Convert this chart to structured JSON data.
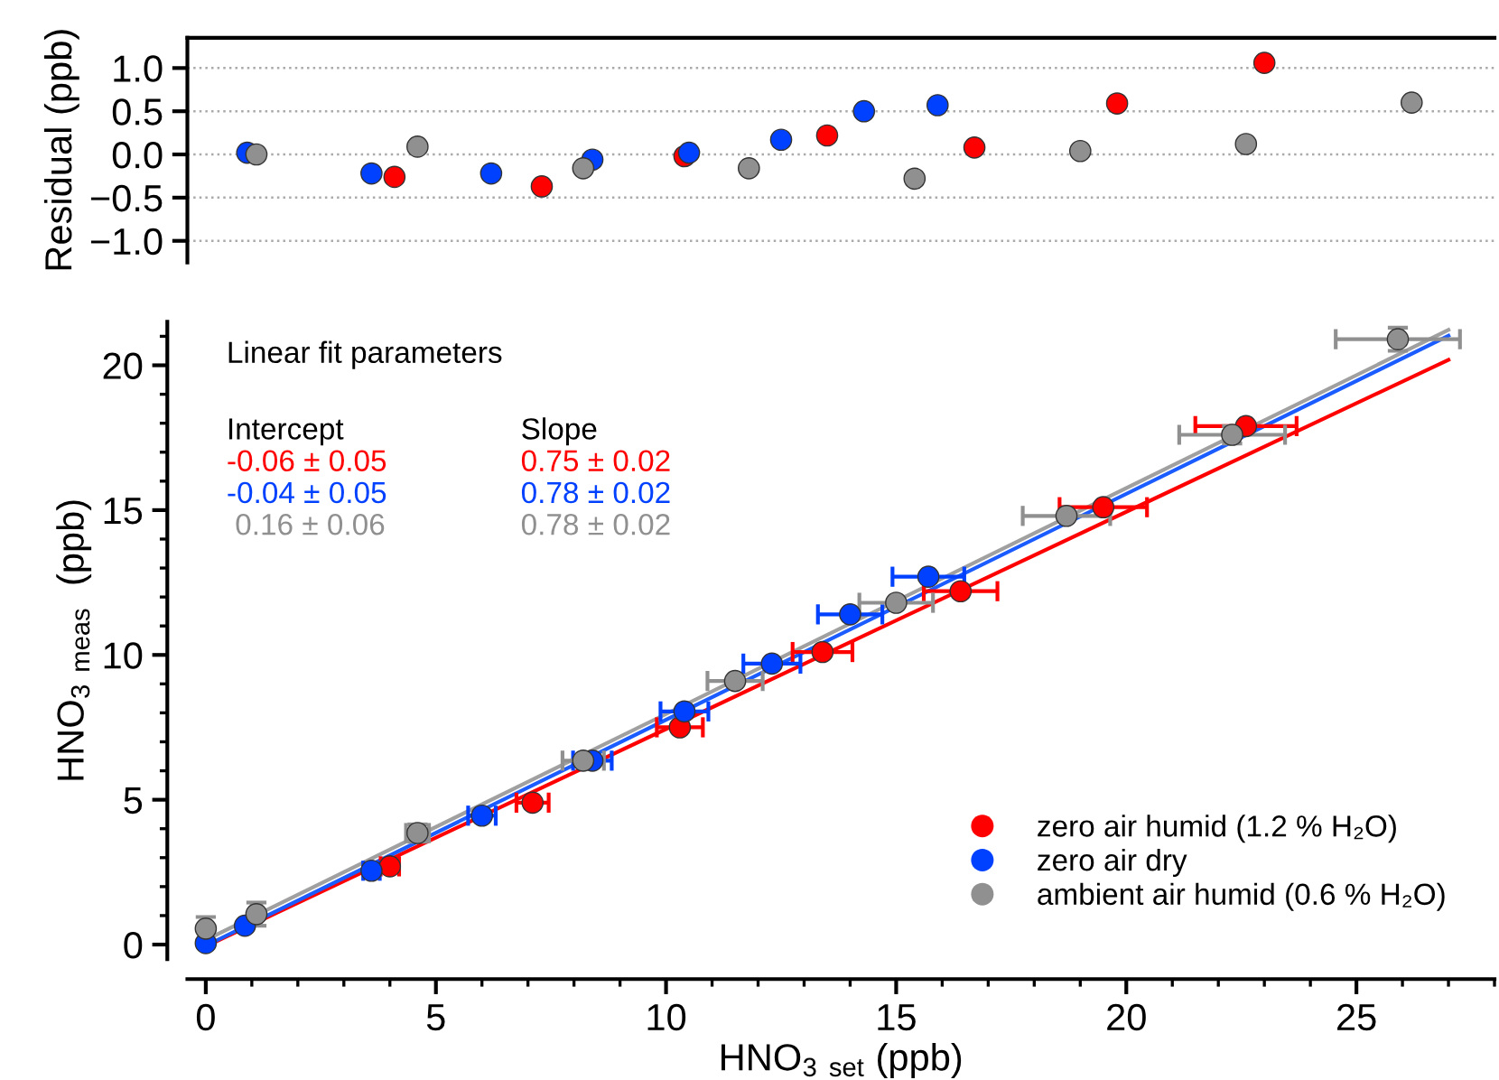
{
  "chart_data": [
    {
      "type": "scatter",
      "ylabel": "Residual (ppb)",
      "xlim": [
        -0.4,
        28
      ],
      "ylim": [
        -1.25,
        1.35
      ],
      "yticks": [
        {
          "value": 1.0,
          "label": "1.0"
        },
        {
          "value": 0.5,
          "label": "0.5"
        },
        {
          "value": 0.0,
          "label": "0.0"
        },
        {
          "value": -0.5,
          "label": "−0.5"
        },
        {
          "value": -1.0,
          "label": "−1.0"
        }
      ],
      "tick_labels": "y",
      "grid": "y",
      "marker": "circle",
      "series": [
        {
          "color": "#ff0000",
          "x": [
            4.1,
            7.3,
            10.4,
            13.5,
            16.7,
            19.8,
            23.0
          ],
          "values": [
            -0.26,
            -0.37,
            -0.02,
            0.22,
            0.08,
            0.59,
            1.06
          ]
        },
        {
          "color": "#0040ff",
          "x": [
            0.9,
            3.6,
            6.2,
            8.4,
            10.5,
            12.5,
            14.3,
            15.9
          ],
          "values": [
            0.02,
            -0.22,
            -0.22,
            -0.06,
            0.02,
            0.17,
            0.5,
            0.57
          ]
        },
        {
          "color": "#909090",
          "x": [
            1.1,
            4.6,
            8.2,
            11.8,
            15.4,
            19.0,
            22.6,
            26.2
          ],
          "values": [
            0.0,
            0.09,
            -0.16,
            -0.16,
            -0.28,
            0.04,
            0.12,
            0.6
          ]
        }
      ]
    },
    {
      "type": "scatter",
      "xlabel": "HNO$_{3}$ $_{set}$ (ppb)",
      "ylabel": "HNO$_{3}$ $_{meas}$  (ppb)",
      "xlim": [
        -0.4,
        28
      ],
      "ylim": [
        -0.5,
        21.5
      ],
      "xticks": [
        0,
        5,
        10,
        15,
        20,
        25
      ],
      "yticks": [
        0,
        5,
        10,
        15,
        20
      ],
      "marker": "circle",
      "legend": "bottom right",
      "grid": false,
      "annotations": [
        "Linear fit parameters",
        "Intercept",
        "Slope",
        "-0.06 ± 0.05",
        "0.75 ± 0.02",
        "-0.04 ± 0.05",
        "0.78 ± 0.02",
        " 0.16 ± 0.06",
        "0.78 ± 0.02"
      ],
      "series": [
        {
          "name": "zero air humid (1.2 % H₂O)",
          "color": "#ff0000",
          "x": [
            4.0,
            7.1,
            10.3,
            13.4,
            16.4,
            19.5,
            22.6
          ],
          "values": [
            2.7,
            4.9,
            7.5,
            10.1,
            12.2,
            15.1,
            17.9
          ],
          "xerrors": [
            0.2,
            0.35,
            0.5,
            0.65,
            0.8,
            0.95,
            1.1
          ]
        },
        {
          "name": "zero air dry",
          "color": "#0040ff",
          "x": [
            0.0,
            0.85,
            3.6,
            6.0,
            8.4,
            10.4,
            12.3,
            14.0,
            15.7
          ],
          "values": [
            0.05,
            0.65,
            2.55,
            4.45,
            6.35,
            8.05,
            9.7,
            11.4,
            12.7
          ],
          "xerrors": [
            null,
            null,
            0.18,
            0.3,
            0.42,
            0.52,
            0.62,
            0.7,
            0.78
          ]
        },
        {
          "name": "ambient air humid (0.6 % H₂O)",
          "color": "#909090",
          "x": [
            0.0,
            1.1,
            4.6,
            8.2,
            11.5,
            15.0,
            18.7,
            22.3,
            25.9
          ],
          "values": [
            0.55,
            1.05,
            3.85,
            6.35,
            9.1,
            11.8,
            14.8,
            17.6,
            20.9
          ],
          "xerrors": [
            null,
            0.1,
            0.25,
            0.45,
            0.6,
            0.8,
            0.95,
            1.15,
            1.35
          ],
          "errors": [
            0.4,
            0.4,
            0.3,
            null,
            null,
            null,
            null,
            0.3,
            0.4
          ]
        },
        {
          "type": "line",
          "marker": "none",
          "color": "#ff0000",
          "x": [
            0,
            27
          ],
          "values": [
            -0.06,
            20.19
          ]
        },
        {
          "type": "line",
          "marker": "none",
          "color": "#1a5cff",
          "x": [
            0,
            27
          ],
          "values": [
            -0.04,
            21.02
          ]
        },
        {
          "type": "line",
          "marker": "none",
          "color": "#a0a0a0",
          "x": [
            0,
            27
          ],
          "values": [
            0.16,
            21.22
          ]
        }
      ]
    }
  ]
}
